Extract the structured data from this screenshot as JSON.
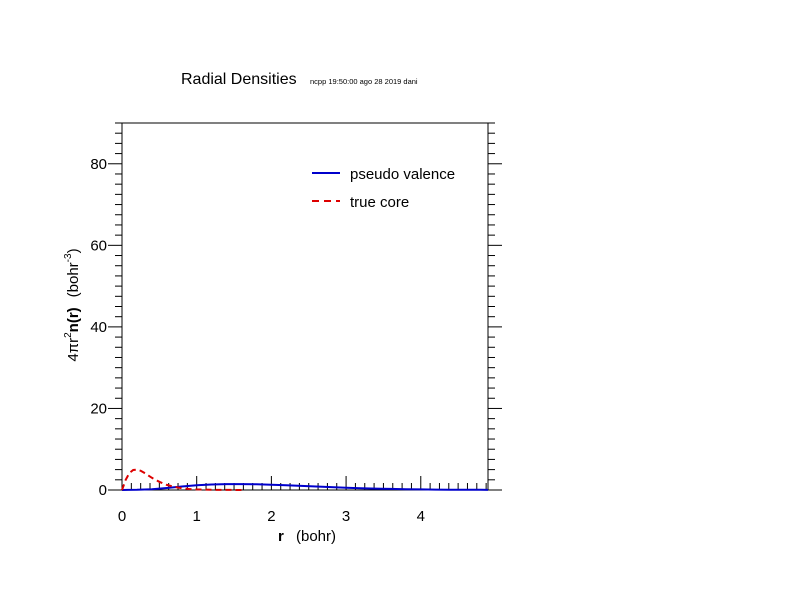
{
  "chart_data": {
    "type": "line",
    "title": "Radial Densities",
    "subtitle": "ncpp 19:50:00 ago 28 2019 dani",
    "xlabel": {
      "bold_part": "r",
      "rest": "(bohr)"
    },
    "ylabel": {
      "prefix": "4πr",
      "sup": "2",
      "bold_part": "n(r)",
      "units_pre": "(bohr",
      "units_sup": "-3",
      "units_post": ")"
    },
    "xlim": [
      0,
      4.9
    ],
    "ylim": [
      0,
      90
    ],
    "xticks": [
      0,
      1,
      2,
      3,
      4
    ],
    "xtick_labels": [
      "0",
      "1",
      "2",
      "3",
      "4"
    ],
    "yticks": [
      0,
      20,
      40,
      60,
      80
    ],
    "ytick_labels": [
      "0",
      "20",
      "40",
      "60",
      "80"
    ],
    "grid": false,
    "legend_position": "top-right",
    "series": [
      {
        "name": "pseudo valence",
        "color": "#0000cc",
        "dash": "solid",
        "x": [
          0,
          0.2,
          0.4,
          0.6,
          0.8,
          1.0,
          1.2,
          1.4,
          1.6,
          1.8,
          2.0,
          2.2,
          2.4,
          2.6,
          2.8,
          3.0,
          3.2,
          3.4,
          3.6,
          3.8,
          4.0,
          4.2,
          4.4,
          4.6,
          4.8,
          4.9
        ],
        "y": [
          0,
          0.05,
          0.2,
          0.5,
          0.85,
          1.15,
          1.35,
          1.45,
          1.45,
          1.4,
          1.3,
          1.15,
          1.0,
          0.85,
          0.7,
          0.55,
          0.45,
          0.35,
          0.27,
          0.2,
          0.15,
          0.11,
          0.08,
          0.06,
          0.04,
          0.03
        ]
      },
      {
        "name": "true core",
        "color": "#dd0000",
        "dash": "dashed",
        "x": [
          0,
          0.05,
          0.1,
          0.15,
          0.2,
          0.25,
          0.3,
          0.35,
          0.4,
          0.5,
          0.6,
          0.7,
          0.8,
          0.9,
          1.0,
          1.2,
          1.4,
          1.6
        ],
        "y": [
          0,
          2.5,
          4.2,
          4.9,
          5.0,
          4.7,
          4.2,
          3.6,
          3.0,
          2.0,
          1.25,
          0.75,
          0.45,
          0.25,
          0.15,
          0.05,
          0.02,
          0
        ]
      }
    ]
  }
}
